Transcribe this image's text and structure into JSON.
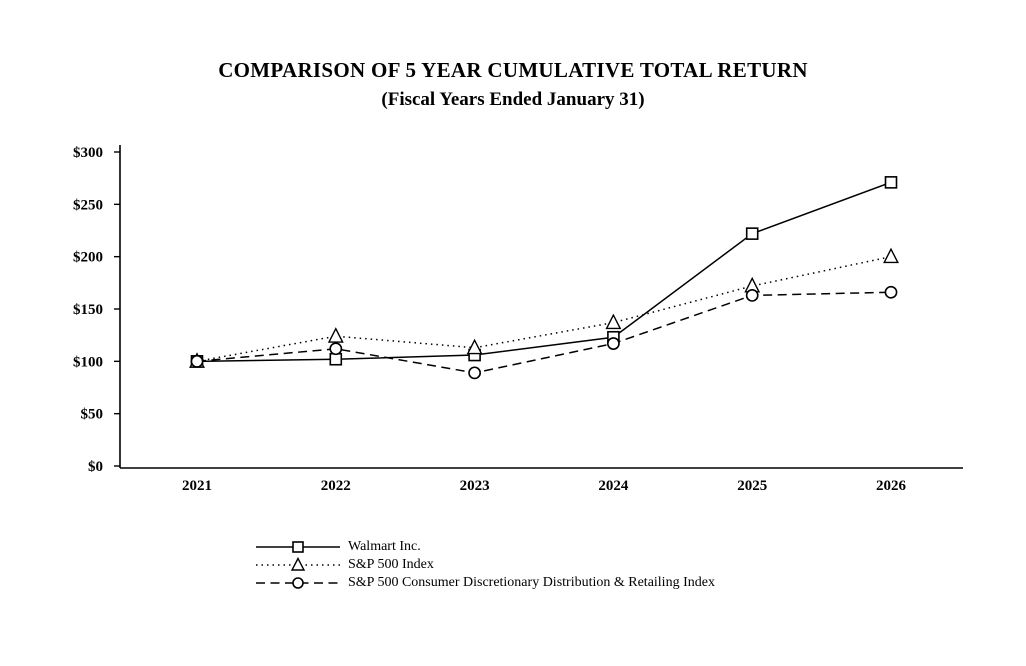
{
  "header": {
    "title_line1": "COMPARISON OF 5 YEAR CUMULATIVE TOTAL RETURN",
    "title_line2": "(Fiscal Years Ended January 31)"
  },
  "chart_data": {
    "type": "line",
    "title": "COMPARISON OF 5 YEAR CUMULATIVE TOTAL RETURN (Fiscal Years Ended January 31)",
    "x": [
      2021,
      2022,
      2023,
      2024,
      2025,
      2026
    ],
    "xtick_labels": [
      "2021",
      "2022",
      "2023",
      "2024",
      "2025",
      "2026"
    ],
    "ytick_labels": [
      "$0",
      "$50",
      "$100",
      "$150",
      "$200",
      "$250",
      "$300"
    ],
    "ylim": [
      0,
      300
    ],
    "ytick_step": 50,
    "grid": false,
    "legend_position": "bottom-left",
    "line_color": "#000000",
    "series": [
      {
        "name": "Walmart Inc.",
        "marker": "square",
        "line": "solid",
        "values": [
          100,
          102,
          106,
          123,
          222,
          271
        ]
      },
      {
        "name": "S&P 500 Index",
        "marker": "triangle",
        "line": "dotted",
        "values": [
          100,
          124,
          113,
          137,
          172,
          200
        ]
      },
      {
        "name": "S&P 500 Consumer Discretionary Distribution & Retailing Index",
        "marker": "circle",
        "line": "dashed",
        "values": [
          100,
          112,
          89,
          117,
          163,
          166
        ]
      }
    ]
  }
}
